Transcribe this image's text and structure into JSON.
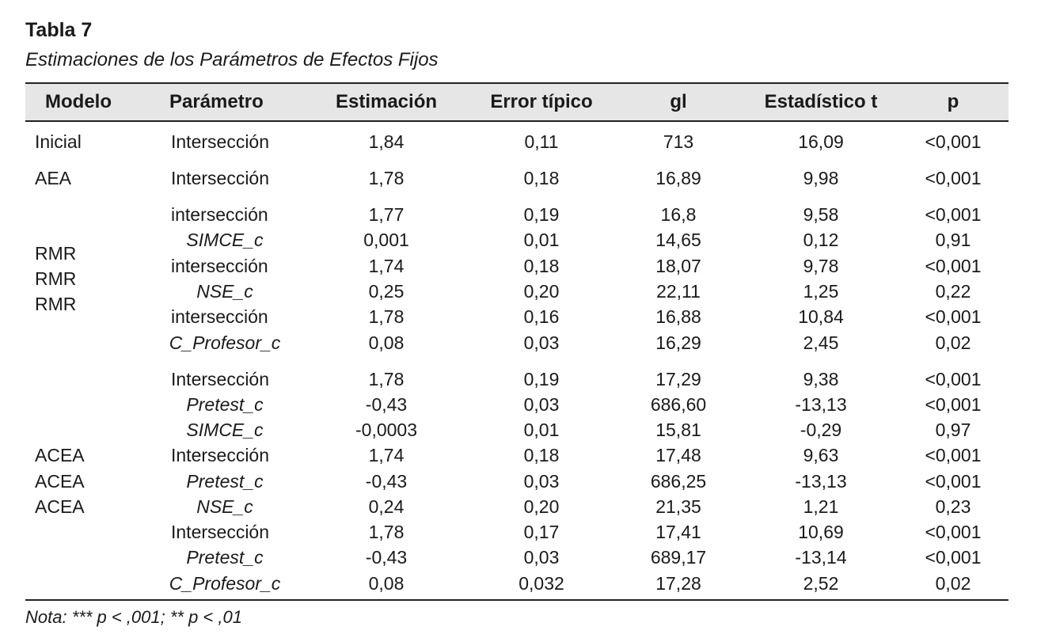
{
  "title": "Tabla 7",
  "subtitle": "Estimaciones de los Parámetros de Efectos Fijos",
  "headers": [
    "Modelo",
    "Parámetro",
    "Estimación",
    "Error típico",
    "gl",
    "Estadístico t",
    "p"
  ],
  "models": {
    "inicial": "Inicial",
    "aea": "AEA",
    "rmr": [
      "RMR",
      "RMR",
      "RMR"
    ],
    "acea": [
      "ACEA",
      "ACEA",
      "ACEA"
    ]
  },
  "rows": [
    {
      "param": "Intersección",
      "est": "1,84",
      "se": "0,11",
      "gl": "713",
      "t": "16,09",
      "p": "<0,001",
      "italic": false
    },
    {
      "param": "Intersección",
      "est": "1,78",
      "se": "0,18",
      "gl": "16,89",
      "t": "9,98",
      "p": "<0,001",
      "italic": false
    },
    {
      "param": "intersección",
      "est": "1,77",
      "se": "0,19",
      "gl": "16,8",
      "t": "9,58",
      "p": "<0,001",
      "italic": false
    },
    {
      "param": "SIMCE_c",
      "est": "0,001",
      "se": "0,01",
      "gl": "14,65",
      "t": "0,12",
      "p": "0,91",
      "italic": true
    },
    {
      "param": "intersección",
      "est": "1,74",
      "se": "0,18",
      "gl": "18,07",
      "t": "9,78",
      "p": "<0,001",
      "italic": false
    },
    {
      "param": "NSE_c",
      "est": "0,25",
      "se": "0,20",
      "gl": "22,11",
      "t": "1,25",
      "p": "0,22",
      "italic": true
    },
    {
      "param": "intersección",
      "est": "1,78",
      "se": "0,16",
      "gl": "16,88",
      "t": "10,84",
      "p": "<0,001",
      "italic": false
    },
    {
      "param": "C_Profesor_c",
      "est": "0,08",
      "se": "0,03",
      "gl": "16,29",
      "t": "2,45",
      "p": "0,02",
      "italic": true
    },
    {
      "param": "Intersección",
      "est": "1,78",
      "se": "0,19",
      "gl": "17,29",
      "t": "9,38",
      "p": "<0,001",
      "italic": false
    },
    {
      "param": "Pretest_c",
      "est": "-0,43",
      "se": "0,03",
      "gl": "686,60",
      "t": "-13,13",
      "p": "<0,001",
      "italic": true
    },
    {
      "param": "SIMCE_c",
      "est": "-0,0003",
      "se": "0,01",
      "gl": "15,81",
      "t": "-0,29",
      "p": "0,97",
      "italic": true
    },
    {
      "param": "Intersección",
      "est": "1,74",
      "se": "0,18",
      "gl": "17,48",
      "t": "9,63",
      "p": "<0,001",
      "italic": false
    },
    {
      "param": "Pretest_c",
      "est": "-0,43",
      "se": "0,03",
      "gl": "686,25",
      "t": "-13,13",
      "p": "<0,001",
      "italic": true
    },
    {
      "param": "NSE_c",
      "est": "0,24",
      "se": "0,20",
      "gl": "21,35",
      "t": "1,21",
      "p": "0,23",
      "italic": true
    },
    {
      "param": "Intersección",
      "est": "1,78",
      "se": "0,17",
      "gl": "17,41",
      "t": "10,69",
      "p": "<0,001",
      "italic": false
    },
    {
      "param": "Pretest_c",
      "est": "-0,43",
      "se": "0,03",
      "gl": "689,17",
      "t": "-13,14",
      "p": "<0,001",
      "italic": true
    },
    {
      "param": "C_Profesor_c",
      "est": "0,08",
      "se": "0,032",
      "gl": "17,28",
      "t": "2,52",
      "p": "0,02",
      "italic": true
    }
  ],
  "note": "Nota: *** p < ,001; ** p < ,01"
}
